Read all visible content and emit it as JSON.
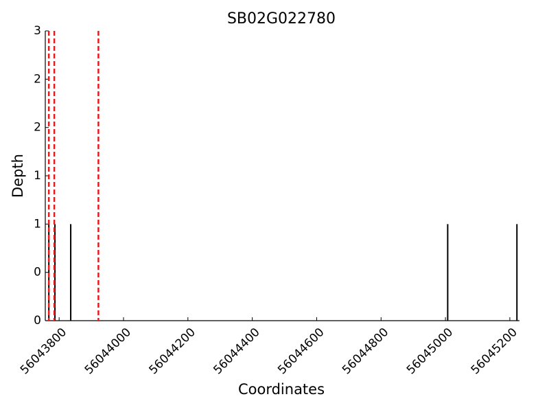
{
  "chart_data": {
    "type": "stem",
    "title": "SB02G022780",
    "x_label": "Coordinates",
    "y_label": "Depth",
    "x": [
      56043768,
      56043787,
      56043836,
      56045007,
      56045222
    ],
    "values": [
      1,
      1,
      1,
      1,
      1
    ],
    "color": "#000000",
    "markers": {
      "color": "#e41a1c",
      "x": [
        56043768,
        56043785,
        56043922
      ]
    },
    "xlim": [
      56043757,
      56045230
    ],
    "xticks": [
      56043800,
      56044000,
      56044200,
      56044400,
      56044600,
      56044800,
      56045000,
      56045200
    ],
    "ylim": [
      0,
      3
    ],
    "yticks": [
      0,
      {
        "value": 0.5,
        "label": "0"
      },
      1,
      {
        "value": 1.5,
        "label": "1"
      },
      2,
      {
        "value": 2.5,
        "label": "2"
      },
      3
    ],
    "grid": false
  }
}
